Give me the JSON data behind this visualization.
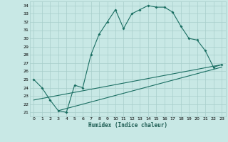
{
  "xlabel": "Humidex (Indice chaleur)",
  "xlim": [
    -0.5,
    23.5
  ],
  "ylim": [
    20.5,
    34.5
  ],
  "yticks": [
    21,
    22,
    23,
    24,
    25,
    26,
    27,
    28,
    29,
    30,
    31,
    32,
    33,
    34
  ],
  "xticks": [
    0,
    1,
    2,
    3,
    4,
    5,
    6,
    7,
    8,
    9,
    10,
    11,
    12,
    13,
    14,
    15,
    16,
    17,
    18,
    19,
    20,
    21,
    22,
    23
  ],
  "bg_color": "#c8e8e5",
  "line_color": "#1a6e62",
  "grid_color": "#a8ceca",
  "series": [
    [
      0,
      25.0
    ],
    [
      1,
      24.0
    ],
    [
      2,
      22.5
    ],
    [
      3,
      21.2
    ],
    [
      4,
      21.0
    ],
    [
      5,
      24.3
    ],
    [
      6,
      24.0
    ],
    [
      7,
      28.0
    ],
    [
      8,
      30.5
    ],
    [
      9,
      32.0
    ],
    [
      10,
      33.5
    ],
    [
      11,
      31.2
    ],
    [
      12,
      33.0
    ],
    [
      13,
      33.5
    ],
    [
      14,
      34.0
    ],
    [
      15,
      33.8
    ],
    [
      16,
      33.8
    ],
    [
      17,
      33.2
    ],
    [
      18,
      31.5
    ],
    [
      19,
      30.0
    ],
    [
      20,
      29.8
    ],
    [
      21,
      28.5
    ],
    [
      22,
      26.5
    ],
    [
      23,
      26.8
    ]
  ],
  "line2": [
    [
      0,
      22.5
    ],
    [
      23,
      26.8
    ]
  ],
  "line3": [
    [
      3,
      21.2
    ],
    [
      23,
      26.5
    ]
  ]
}
